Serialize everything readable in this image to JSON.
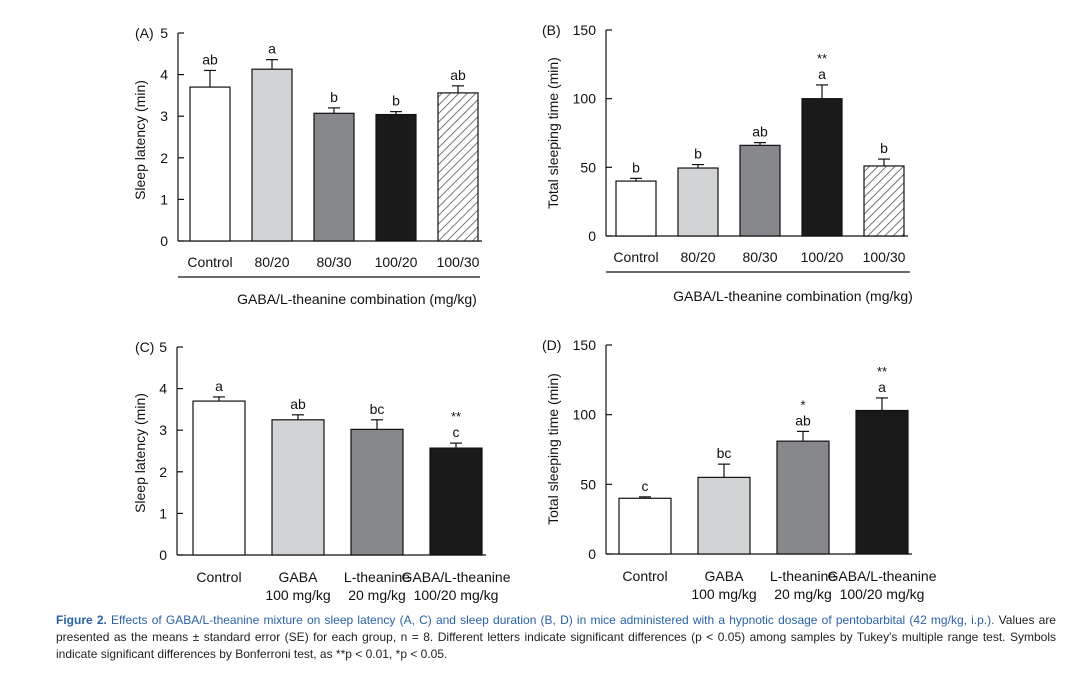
{
  "chart_data": [
    {
      "panel": "(A)",
      "type": "bar",
      "ylabel": "Sleep latency (min)",
      "ylim": [
        0,
        5
      ],
      "yticks": [
        "0",
        "1",
        "2",
        "3",
        "4",
        "5"
      ],
      "categories": [
        "Control",
        "80/20",
        "80/30",
        "100/20",
        "100/30"
      ],
      "sublabels": [
        "",
        "",
        "",
        "",
        ""
      ],
      "values": [
        3.7,
        4.13,
        3.07,
        3.04,
        3.56
      ],
      "errors": [
        0.4,
        0.23,
        0.13,
        0.07,
        0.17
      ],
      "letters": [
        "ab",
        "a",
        "b",
        "b",
        "ab"
      ],
      "stars": [
        "",
        "",
        "",
        "",
        ""
      ],
      "fills": [
        "white",
        "light",
        "mid",
        "dark",
        "hatch"
      ],
      "xlabel": "GABA/L-theanine combination (mg/kg)"
    },
    {
      "panel": "(B)",
      "type": "bar",
      "ylabel": "Total sleeping time (min)",
      "ylim": [
        0,
        150
      ],
      "yticks": [
        "0",
        "50",
        "100",
        "150"
      ],
      "categories": [
        "Control",
        "80/20",
        "80/30",
        "100/20",
        "100/30"
      ],
      "sublabels": [
        "",
        "",
        "",
        "",
        ""
      ],
      "values": [
        40,
        49.5,
        66,
        100,
        51
      ],
      "errors": [
        2,
        2.5,
        2,
        10,
        5
      ],
      "letters": [
        "b",
        "b",
        "ab",
        "a",
        "b"
      ],
      "stars": [
        "",
        "",
        "",
        "**",
        ""
      ],
      "fills": [
        "white",
        "light",
        "mid",
        "dark",
        "hatch"
      ],
      "xlabel": "GABA/L-theanine combination (mg/kg)"
    },
    {
      "panel": "(C)",
      "type": "bar",
      "ylabel": "Sleep latency (min)",
      "ylim": [
        0,
        5
      ],
      "yticks": [
        "0",
        "1",
        "2",
        "3",
        "4",
        "5"
      ],
      "categories": [
        "Control",
        "GABA",
        "L-theanine",
        "GABA/L-theanine"
      ],
      "sublabels": [
        "",
        "100 mg/kg",
        "20 mg/kg",
        "100/20 mg/kg"
      ],
      "values": [
        3.7,
        3.25,
        3.02,
        2.57
      ],
      "errors": [
        0.1,
        0.12,
        0.23,
        0.12
      ],
      "letters": [
        "a",
        "ab",
        "bc",
        "c"
      ],
      "stars": [
        "",
        "",
        "",
        "**"
      ],
      "fills": [
        "white",
        "light",
        "mid",
        "dark"
      ],
      "xlabel": ""
    },
    {
      "panel": "(D)",
      "type": "bar",
      "ylabel": "Total sleeping time (min)",
      "ylim": [
        0,
        150
      ],
      "yticks": [
        "0",
        "50",
        "100",
        "150"
      ],
      "categories": [
        "Control",
        "GABA",
        "L-theanine",
        "GABA/L-theanine"
      ],
      "sublabels": [
        "",
        "100 mg/kg",
        "20 mg/kg",
        "100/20 mg/kg"
      ],
      "values": [
        40,
        55,
        81,
        103
      ],
      "errors": [
        1,
        9.5,
        7,
        9
      ],
      "letters": [
        "c",
        "bc",
        "ab",
        "a"
      ],
      "stars": [
        "",
        "",
        "*",
        "**"
      ],
      "fills": [
        "white",
        "light",
        "mid",
        "dark"
      ],
      "xlabel": ""
    }
  ],
  "caption": {
    "label": "Figure 2.",
    "title": "Effects of GABA/L-theanine mixture on sleep latency (A, C) and sleep duration (B, D) in mice administered with a hypnotic dosage of pentobarbital (42 mg/kg, i.p.).",
    "body": "Values are presented as the means ± standard error (SE) for each group, n = 8. Different letters indicate significant differences (p < 0.05) among samples by Tukey's multiple range test. Symbols indicate significant differences by Bonferroni test, as **p < 0.01, *p < 0.05."
  },
  "colors": {
    "white": "#ffffff",
    "light": "#d2d3d5",
    "mid": "#87888b",
    "dark": "#1a1a1a",
    "hatch": "#555555",
    "stroke": "#111111",
    "caption_accent": "#2a62a8"
  }
}
